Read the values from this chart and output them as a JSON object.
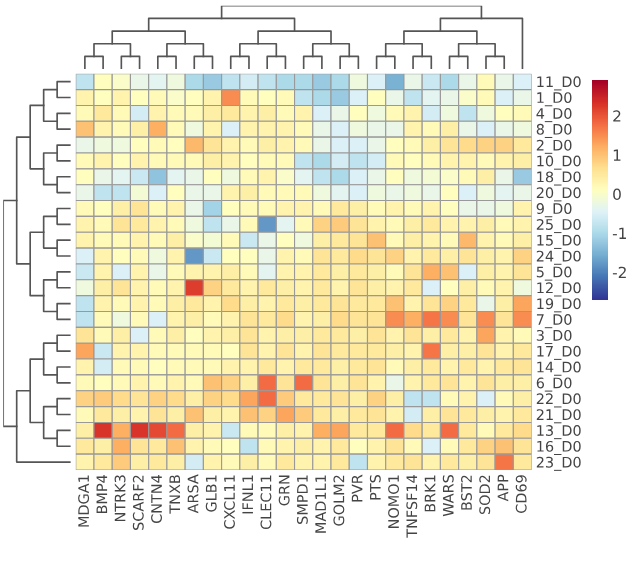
{
  "chart_data": {
    "type": "heatmap",
    "categories": [
      "MDGA1",
      "BMP4",
      "NTRK3",
      "SCARF2",
      "CNTN4",
      "TNXB",
      "ARSA",
      "GLB1",
      "CXCL11",
      "IFNL1",
      "CLEC11",
      "GRN",
      "SMPD1",
      "MAD1L1",
      "GOLM2",
      "PVR",
      "PTS",
      "NOMO1",
      "TNFSF14",
      "BRK1",
      "WARS",
      "BST2",
      "SOD2",
      "APP",
      "CD69"
    ],
    "y_categories": [
      "11_D0",
      "1_D0",
      "4_D0",
      "8_D0",
      "2_D0",
      "10_D0",
      "18_D0",
      "20_D0",
      "9_D0",
      "25_D0",
      "15_D0",
      "24_D0",
      "5_D0",
      "12_D0",
      "19_D0",
      "7_D0",
      "3_D0",
      "17_D0",
      "14_D0",
      "6_D0",
      "22_D0",
      "21_D0",
      "13_D0",
      "16_D0",
      "23_D0"
    ],
    "cells": [
      [
        -0.8,
        0.1,
        0,
        -0.3,
        -0.4,
        -0.2,
        -1,
        -1.2,
        -0.8,
        -0.6,
        -0.8,
        -1,
        -1,
        -1.2,
        -1,
        -0.2,
        -0.5,
        -1.5,
        -0.3,
        -0.7,
        -1,
        -0.3,
        0.2,
        -0.3,
        -0.5
      ],
      [
        0.3,
        0.1,
        0.3,
        0.1,
        0.2,
        0,
        0.1,
        0.3,
        1.5,
        0.2,
        0.1,
        0.2,
        -0.8,
        -1,
        -1.2,
        -0.5,
        0.1,
        -0.3,
        -0.8,
        -0.4,
        -0.3,
        0,
        0.2,
        -0.5,
        -0.3
      ],
      [
        0.2,
        0.5,
        0.2,
        -0.6,
        0.3,
        0.2,
        0.2,
        0.4,
        0.5,
        0.3,
        0.4,
        0.2,
        0.3,
        -0.5,
        -0.3,
        0.1,
        -0.2,
        0.2,
        0.3,
        -0.6,
        -0.2,
        -0.8,
        -0.2,
        0.1,
        0.2
      ],
      [
        1,
        0.3,
        0.2,
        0.4,
        1.2,
        0.2,
        -0.2,
        0.3,
        -0.5,
        0.3,
        0.3,
        0.3,
        0.2,
        -0.3,
        -0.5,
        -0.2,
        -0.3,
        -0.3,
        0.3,
        0.2,
        0.4,
        -0.3,
        -0.5,
        -0.3,
        -0.2
      ],
      [
        -0.3,
        -0.2,
        -0.2,
        0.1,
        0.2,
        0.1,
        1.1,
        0.6,
        0.3,
        0.2,
        0.4,
        0.3,
        0.2,
        -0.3,
        -0.5,
        -0.5,
        -0.3,
        0.1,
        0.2,
        0.4,
        0.6,
        0.7,
        0.8,
        0.8,
        0.5
      ],
      [
        0.2,
        0.3,
        0.1,
        0.3,
        0.2,
        0.2,
        0.2,
        0.4,
        0.3,
        0.1,
        0.2,
        0.2,
        -0.8,
        -1,
        -0.6,
        -0.8,
        -0.6,
        0.2,
        0.1,
        0.2,
        0.3,
        0.3,
        0.2,
        0.3,
        0.4
      ],
      [
        0.1,
        -0.3,
        -0.4,
        -0.7,
        -1.3,
        -0.4,
        -0.3,
        0.1,
        -0.2,
        0.2,
        0.3,
        0,
        -0.4,
        -0.8,
        -1,
        -0.5,
        -0.3,
        0.1,
        -0.2,
        -0.1,
        0,
        0.2,
        0.4,
        -0.3,
        -1.2
      ],
      [
        -0.3,
        -0.8,
        -0.8,
        -0.1,
        -0.5,
        0.1,
        -0.3,
        -0.3,
        0.3,
        0.4,
        0.2,
        0.2,
        0.2,
        -0.2,
        -0.4,
        -0.5,
        -0.2,
        -0.3,
        -0.2,
        -0.3,
        0.1,
        -0.5,
        -0.2,
        -0.4,
        -0.3
      ],
      [
        0.2,
        0.1,
        0.4,
        0.6,
        0.2,
        0.3,
        -0.3,
        -1.1,
        0.1,
        0.2,
        0.2,
        0.3,
        0.3,
        0.2,
        0.5,
        0.4,
        0.2,
        0.3,
        0.2,
        0.3,
        0.1,
        -0.3,
        -0.3,
        -0.2,
        0.3
      ],
      [
        0.3,
        0.2,
        0.6,
        0.5,
        0.3,
        0.2,
        -0.2,
        -0.8,
        -0.3,
        0.2,
        -1.8,
        -0.4,
        0.2,
        0.8,
        0.9,
        0.6,
        0.3,
        0.2,
        0.4,
        0.5,
        0.3,
        0.3,
        0.4,
        0.2,
        0.3
      ],
      [
        0.3,
        0.2,
        0.2,
        0.3,
        0.2,
        0.4,
        0,
        -0.1,
        0.2,
        -0.7,
        -0.3,
        0.1,
        -0.2,
        0.4,
        0.5,
        0.6,
        1,
        0.2,
        0.4,
        0.3,
        0.2,
        1.1,
        0.3,
        0.2,
        0.4
      ],
      [
        -0.5,
        0.3,
        0.1,
        0.2,
        -0.2,
        0.3,
        -1.8,
        -0.7,
        0.1,
        0.1,
        -0.3,
        0.3,
        0.2,
        0.6,
        0.5,
        0.7,
        0.6,
        0.8,
        0.3,
        0.5,
        0.4,
        0.6,
        0.4,
        0.3,
        0.8
      ],
      [
        -0.7,
        0.3,
        -0.5,
        0.3,
        -0.3,
        0.2,
        0.3,
        0.3,
        0.4,
        0.2,
        -0.4,
        0.3,
        0.3,
        0.5,
        0.4,
        0.5,
        0.4,
        0.2,
        0.6,
        1.2,
        1,
        -0.5,
        0.4,
        0.3,
        0.6
      ],
      [
        -0.2,
        0.4,
        0.6,
        0.3,
        0.2,
        0.3,
        2.2,
        0.8,
        0.5,
        0.3,
        0.5,
        0.4,
        0.3,
        0.5,
        0.3,
        0.6,
        0.4,
        0.3,
        0.5,
        -0.5,
        0.1,
        0.4,
        0.2,
        0.3,
        -0.2
      ],
      [
        -0.8,
        0.3,
        0.2,
        0.3,
        0.2,
        0.4,
        0.5,
        0.3,
        0.7,
        0.4,
        0.3,
        0.5,
        0.4,
        0.5,
        0.6,
        0.5,
        0.5,
        1,
        0.3,
        0.6,
        0.8,
        0.5,
        -0.3,
        0.4,
        1.3
      ],
      [
        -0.8,
        0.2,
        -0.2,
        0.2,
        -0.5,
        0.3,
        0.4,
        0.2,
        0.3,
        0.6,
        0.5,
        0.7,
        0.3,
        0.4,
        0.7,
        0.6,
        0.6,
        1.5,
        1.2,
        1.7,
        1.5,
        0.6,
        1.5,
        0.6,
        1.5
      ],
      [
        0.6,
        0.2,
        0.4,
        -0.5,
        0.2,
        0.4,
        0.1,
        0.3,
        0.4,
        0.6,
        0.3,
        0.4,
        0.4,
        0.5,
        0.5,
        0.4,
        0.6,
        0.3,
        0.6,
        0.4,
        0.5,
        0.3,
        1.3,
        0.3,
        0.2
      ],
      [
        1.3,
        -0.7,
        0.3,
        0.3,
        0.2,
        0.2,
        0.2,
        0.2,
        0.1,
        0.6,
        0.3,
        0.6,
        0.3,
        0.6,
        0.5,
        0.5,
        0.5,
        0.4,
        0.3,
        1.7,
        0.4,
        0.4,
        0.6,
        0.3,
        0.5
      ],
      [
        0.3,
        -0.6,
        0.2,
        0.2,
        0.1,
        0.2,
        0.2,
        0.2,
        0.3,
        0.3,
        0.5,
        0.3,
        0.5,
        0.5,
        0.4,
        0.5,
        0.6,
        0.2,
        0.4,
        0.5,
        0.3,
        0.5,
        0.3,
        0.5,
        0.6
      ],
      [
        0.2,
        0.1,
        0.2,
        0.3,
        0.2,
        0.3,
        0.2,
        1,
        0.8,
        0.4,
        1.8,
        0.6,
        1.8,
        0.6,
        0.4,
        0.6,
        0.3,
        -0.3,
        0.3,
        0.5,
        0.6,
        0.3,
        0.6,
        0.4,
        0.4
      ],
      [
        0.8,
        0.9,
        0.7,
        0.6,
        0.8,
        0.7,
        0.4,
        0.8,
        0.7,
        1.3,
        1.8,
        0.9,
        0.5,
        0.5,
        0.6,
        0.4,
        0.8,
        0.4,
        -0.8,
        -0.8,
        0.2,
        0.3,
        -0.5,
        0.2,
        0.4
      ],
      [
        0.2,
        0.5,
        0.4,
        0.3,
        0.6,
        0.4,
        1,
        0.4,
        0.3,
        1,
        0.8,
        1.3,
        0.9,
        0.5,
        0.4,
        0.5,
        0.6,
        0.3,
        -0.6,
        0.4,
        0.6,
        0.5,
        0.4,
        0.3,
        0.5
      ],
      [
        0.4,
        2.3,
        1.2,
        2.3,
        2.1,
        1.8,
        0.4,
        0.3,
        -0.7,
        0.2,
        0.2,
        0.4,
        0.3,
        1.2,
        1.3,
        0.5,
        0.5,
        1.8,
        0.7,
        0.5,
        1.8,
        0.5,
        0.2,
        0.5,
        0.7
      ],
      [
        0.5,
        0.4,
        1.2,
        0.6,
        0.5,
        1,
        0.3,
        0.2,
        0.1,
        -0.8,
        0.2,
        0.3,
        0.4,
        0.3,
        0.5,
        0.1,
        0.3,
        0.6,
        0.2,
        -0.5,
        0.2,
        0.5,
        0.8,
        1,
        0.6
      ],
      [
        0.3,
        0.5,
        0.9,
        0.4,
        0.5,
        0.4,
        -0.6,
        0.3,
        0.2,
        0.4,
        0.2,
        0.5,
        0.3,
        0.3,
        0.5,
        -0.8,
        0.3,
        0.5,
        0.6,
        0.3,
        0.5,
        0.4,
        0.6,
        1.7,
        0.5
      ]
    ],
    "clim": [
      -2.7,
      2.9
    ],
    "cticks": [
      -2,
      -1,
      0,
      1,
      2
    ]
  }
}
